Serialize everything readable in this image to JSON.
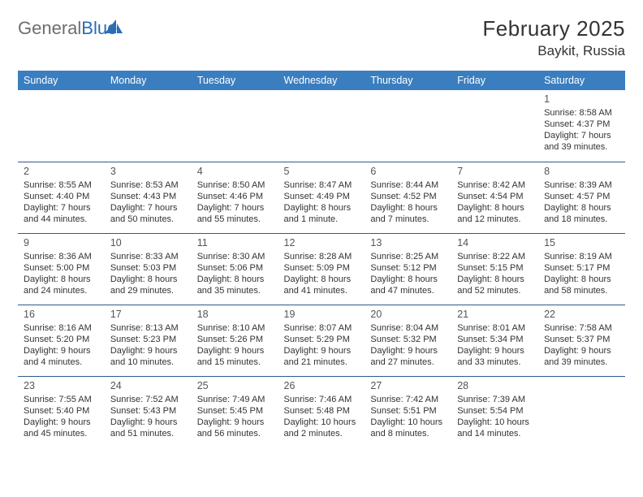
{
  "logo": {
    "text_grey": "General",
    "text_blue": "Blue",
    "sail_color": "#2a6db5"
  },
  "title": {
    "month": "February 2025",
    "location": "Baykit, Russia"
  },
  "style": {
    "header_bg": "#3a7ec0",
    "header_fg": "#ffffff",
    "cell_border": "#2f5a8a"
  },
  "weekdays": [
    "Sunday",
    "Monday",
    "Tuesday",
    "Wednesday",
    "Thursday",
    "Friday",
    "Saturday"
  ],
  "weeks": [
    [
      null,
      null,
      null,
      null,
      null,
      null,
      {
        "d": "1",
        "sr": "Sunrise: 8:58 AM",
        "ss": "Sunset: 4:37 PM",
        "dl": "Daylight: 7 hours and 39 minutes."
      }
    ],
    [
      {
        "d": "2",
        "sr": "Sunrise: 8:55 AM",
        "ss": "Sunset: 4:40 PM",
        "dl": "Daylight: 7 hours and 44 minutes."
      },
      {
        "d": "3",
        "sr": "Sunrise: 8:53 AM",
        "ss": "Sunset: 4:43 PM",
        "dl": "Daylight: 7 hours and 50 minutes."
      },
      {
        "d": "4",
        "sr": "Sunrise: 8:50 AM",
        "ss": "Sunset: 4:46 PM",
        "dl": "Daylight: 7 hours and 55 minutes."
      },
      {
        "d": "5",
        "sr": "Sunrise: 8:47 AM",
        "ss": "Sunset: 4:49 PM",
        "dl": "Daylight: 8 hours and 1 minute."
      },
      {
        "d": "6",
        "sr": "Sunrise: 8:44 AM",
        "ss": "Sunset: 4:52 PM",
        "dl": "Daylight: 8 hours and 7 minutes."
      },
      {
        "d": "7",
        "sr": "Sunrise: 8:42 AM",
        "ss": "Sunset: 4:54 PM",
        "dl": "Daylight: 8 hours and 12 minutes."
      },
      {
        "d": "8",
        "sr": "Sunrise: 8:39 AM",
        "ss": "Sunset: 4:57 PM",
        "dl": "Daylight: 8 hours and 18 minutes."
      }
    ],
    [
      {
        "d": "9",
        "sr": "Sunrise: 8:36 AM",
        "ss": "Sunset: 5:00 PM",
        "dl": "Daylight: 8 hours and 24 minutes."
      },
      {
        "d": "10",
        "sr": "Sunrise: 8:33 AM",
        "ss": "Sunset: 5:03 PM",
        "dl": "Daylight: 8 hours and 29 minutes."
      },
      {
        "d": "11",
        "sr": "Sunrise: 8:30 AM",
        "ss": "Sunset: 5:06 PM",
        "dl": "Daylight: 8 hours and 35 minutes."
      },
      {
        "d": "12",
        "sr": "Sunrise: 8:28 AM",
        "ss": "Sunset: 5:09 PM",
        "dl": "Daylight: 8 hours and 41 minutes."
      },
      {
        "d": "13",
        "sr": "Sunrise: 8:25 AM",
        "ss": "Sunset: 5:12 PM",
        "dl": "Daylight: 8 hours and 47 minutes."
      },
      {
        "d": "14",
        "sr": "Sunrise: 8:22 AM",
        "ss": "Sunset: 5:15 PM",
        "dl": "Daylight: 8 hours and 52 minutes."
      },
      {
        "d": "15",
        "sr": "Sunrise: 8:19 AM",
        "ss": "Sunset: 5:17 PM",
        "dl": "Daylight: 8 hours and 58 minutes."
      }
    ],
    [
      {
        "d": "16",
        "sr": "Sunrise: 8:16 AM",
        "ss": "Sunset: 5:20 PM",
        "dl": "Daylight: 9 hours and 4 minutes."
      },
      {
        "d": "17",
        "sr": "Sunrise: 8:13 AM",
        "ss": "Sunset: 5:23 PM",
        "dl": "Daylight: 9 hours and 10 minutes."
      },
      {
        "d": "18",
        "sr": "Sunrise: 8:10 AM",
        "ss": "Sunset: 5:26 PM",
        "dl": "Daylight: 9 hours and 15 minutes."
      },
      {
        "d": "19",
        "sr": "Sunrise: 8:07 AM",
        "ss": "Sunset: 5:29 PM",
        "dl": "Daylight: 9 hours and 21 minutes."
      },
      {
        "d": "20",
        "sr": "Sunrise: 8:04 AM",
        "ss": "Sunset: 5:32 PM",
        "dl": "Daylight: 9 hours and 27 minutes."
      },
      {
        "d": "21",
        "sr": "Sunrise: 8:01 AM",
        "ss": "Sunset: 5:34 PM",
        "dl": "Daylight: 9 hours and 33 minutes."
      },
      {
        "d": "22",
        "sr": "Sunrise: 7:58 AM",
        "ss": "Sunset: 5:37 PM",
        "dl": "Daylight: 9 hours and 39 minutes."
      }
    ],
    [
      {
        "d": "23",
        "sr": "Sunrise: 7:55 AM",
        "ss": "Sunset: 5:40 PM",
        "dl": "Daylight: 9 hours and 45 minutes."
      },
      {
        "d": "24",
        "sr": "Sunrise: 7:52 AM",
        "ss": "Sunset: 5:43 PM",
        "dl": "Daylight: 9 hours and 51 minutes."
      },
      {
        "d": "25",
        "sr": "Sunrise: 7:49 AM",
        "ss": "Sunset: 5:45 PM",
        "dl": "Daylight: 9 hours and 56 minutes."
      },
      {
        "d": "26",
        "sr": "Sunrise: 7:46 AM",
        "ss": "Sunset: 5:48 PM",
        "dl": "Daylight: 10 hours and 2 minutes."
      },
      {
        "d": "27",
        "sr": "Sunrise: 7:42 AM",
        "ss": "Sunset: 5:51 PM",
        "dl": "Daylight: 10 hours and 8 minutes."
      },
      {
        "d": "28",
        "sr": "Sunrise: 7:39 AM",
        "ss": "Sunset: 5:54 PM",
        "dl": "Daylight: 10 hours and 14 minutes."
      },
      null
    ]
  ]
}
